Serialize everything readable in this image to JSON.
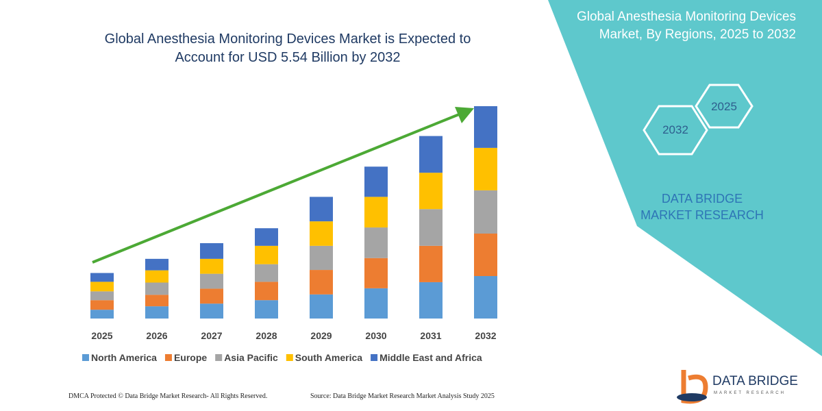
{
  "chart_data": {
    "type": "bar",
    "stacked": true,
    "title": "Global Anesthesia Monitoring Devices Market is Expected to Account for USD 5.54 Billion by 2032",
    "categories": [
      "2025",
      "2026",
      "2027",
      "2028",
      "2029",
      "2030",
      "2031",
      "2032"
    ],
    "series": [
      {
        "name": "North America",
        "color": "#5b9bd5",
        "values": [
          0.23,
          0.32,
          0.39,
          0.48,
          0.63,
          0.79,
          0.95,
          1.11
        ]
      },
      {
        "name": "Europe",
        "color": "#ed7d31",
        "values": [
          0.25,
          0.3,
          0.39,
          0.48,
          0.64,
          0.79,
          0.95,
          1.11
        ]
      },
      {
        "name": "Asia Pacific",
        "color": "#a5a5a5",
        "values": [
          0.23,
          0.32,
          0.39,
          0.46,
          0.63,
          0.8,
          0.96,
          1.13
        ]
      },
      {
        "name": "South America",
        "color": "#ffc000",
        "values": [
          0.25,
          0.32,
          0.39,
          0.48,
          0.64,
          0.8,
          0.95,
          1.11
        ]
      },
      {
        "name": "Middle East and Africa",
        "color": "#4472c4",
        "values": [
          0.23,
          0.3,
          0.41,
          0.46,
          0.64,
          0.79,
          0.96,
          1.09
        ]
      }
    ],
    "legend": "bottom"
  },
  "panel": {
    "title": "Global Anesthesia Monitoring Devices Market, By Regions, 2025 to 2032",
    "hexagons": [
      "2025",
      "2032"
    ],
    "brand": "DATA BRIDGE MARKET RESEARCH"
  },
  "footer": {
    "left": "DMCA Protected © Data Bridge Market Research- All Rights Reserved.",
    "right": "Source: Data Bridge Market Research Market Analysis Study 2025"
  },
  "logo": {
    "name": "DATA BRIDGE",
    "tagline": "MARKET RESEARCH"
  }
}
